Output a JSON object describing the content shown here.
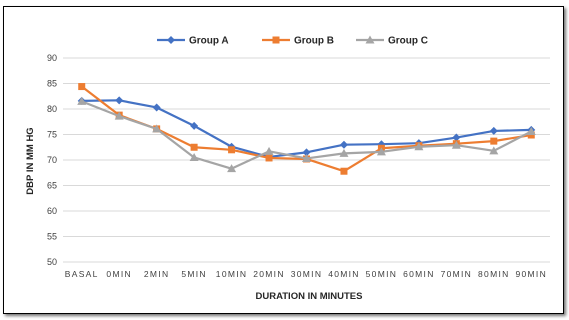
{
  "chart_data": {
    "type": "line",
    "xlabel": "DURATION IN MINUTES",
    "ylabel": "DBP IN MM HG",
    "ylim": [
      50,
      90
    ],
    "yticks": [
      50,
      55,
      60,
      65,
      70,
      75,
      80,
      85,
      90
    ],
    "grid": true,
    "legend_position": "top-center",
    "categories": [
      "BASAL",
      "0MIN",
      "2MIN",
      "5MIN",
      "10MIN",
      "20MIN",
      "30MIN",
      "40MIN",
      "50MIN",
      "60MIN",
      "70MIN",
      "80MIN",
      "90MIN"
    ],
    "series": [
      {
        "name": "Group A",
        "color": "#4472C4",
        "marker": "diamond",
        "values": [
          81.6,
          81.7,
          80.3,
          76.7,
          72.6,
          70.6,
          71.5,
          73.0,
          73.1,
          73.3,
          74.4,
          75.7,
          75.9
        ]
      },
      {
        "name": "Group B",
        "color": "#ED7D31",
        "marker": "square",
        "values": [
          84.4,
          78.8,
          76.1,
          72.5,
          72.0,
          70.4,
          70.2,
          67.8,
          72.3,
          72.8,
          73.2,
          73.7,
          74.9
        ]
      },
      {
        "name": "Group C",
        "color": "#A5A5A5",
        "marker": "triangle",
        "values": [
          81.5,
          78.6,
          76.1,
          70.5,
          68.3,
          71.7,
          70.3,
          71.3,
          71.6,
          72.6,
          72.9,
          71.8,
          75.6
        ]
      }
    ]
  }
}
